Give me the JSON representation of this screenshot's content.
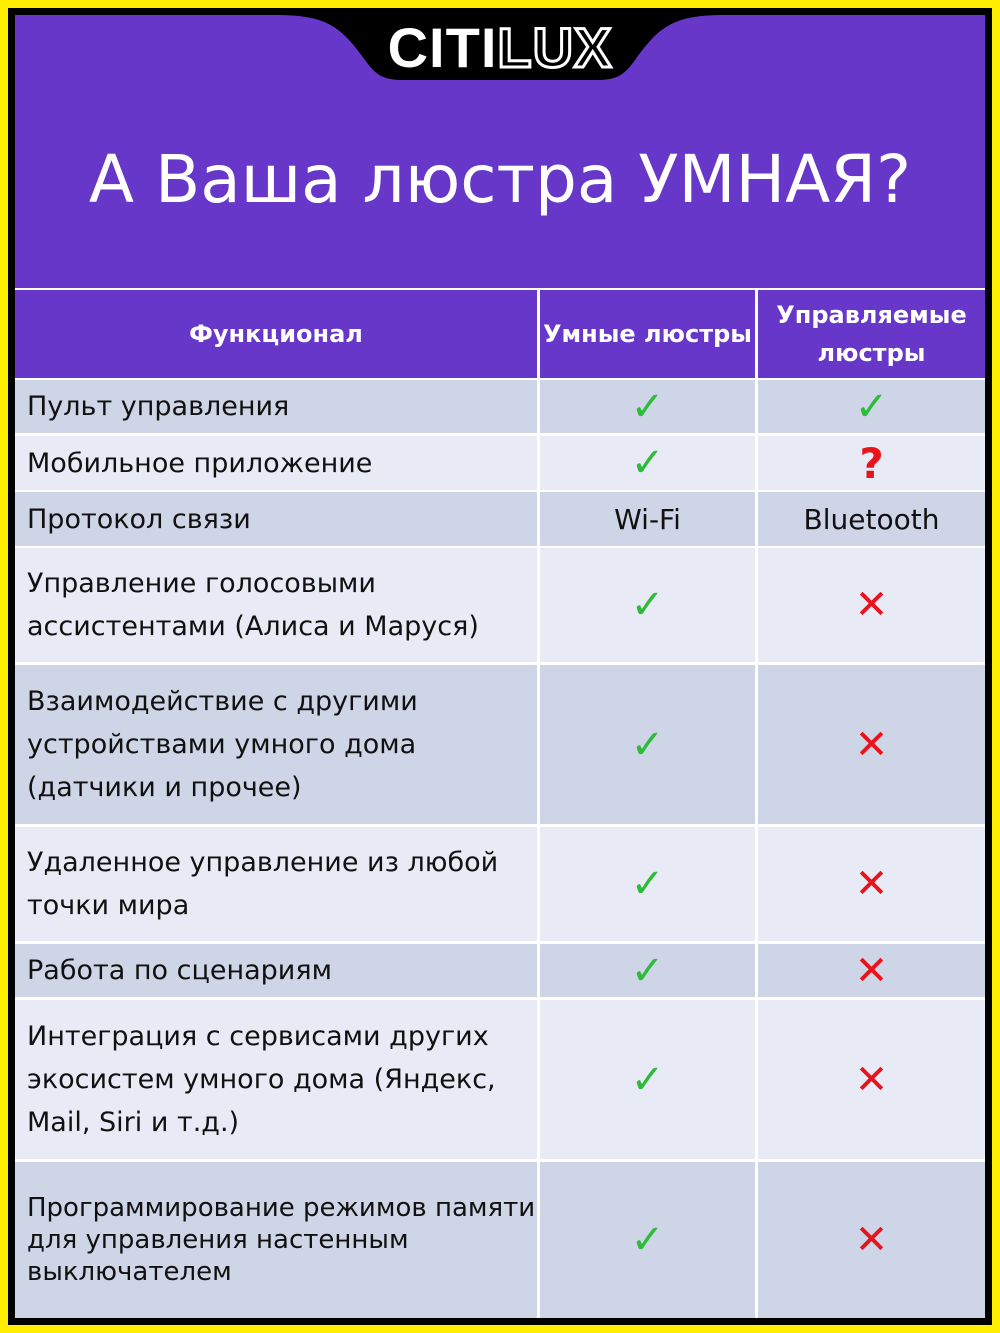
{
  "brand": {
    "logo_part1": "CITI",
    "logo_part2": "LUX"
  },
  "title": "А Ваша люстра УМНАЯ?",
  "colors": {
    "purple": "#6637c9",
    "border": "#ffee00",
    "check": "#2dbb3a",
    "cross": "#e8141c"
  },
  "table": {
    "headers": [
      "Функционал",
      "Умные люстры",
      "Управляемые люстры"
    ],
    "rows": [
      {
        "feature": "Пульт управления",
        "smart": "✓",
        "controlled": "✓"
      },
      {
        "feature": "Мобильное приложение",
        "smart": "✓",
        "controlled": "?"
      },
      {
        "feature": "Протокол связи",
        "smart": "Wi-Fi",
        "controlled": "Bluetooth"
      },
      {
        "feature": "Управление голосовыми ассистентами (Алиса и Маруся)",
        "smart": "✓",
        "controlled": "✕"
      },
      {
        "feature": "Взаимодействие с другими устройствами умного дома (датчики и прочее)",
        "smart": "✓",
        "controlled": "✕"
      },
      {
        "feature": "Удаленное управление из любой точки мира",
        "smart": "✓",
        "controlled": "✕"
      },
      {
        "feature": "Работа по сценариям",
        "smart": "✓",
        "controlled": "✕"
      },
      {
        "feature": "Интеграция с сервисами других экосистем умного дома (Яндекс, Mail, Siri и т.д.)",
        "smart": "✓",
        "controlled": "✕"
      },
      {
        "feature": "Программирование режимов памяти для управления настенным выключателем",
        "smart": "✓",
        "controlled": "✕"
      }
    ]
  }
}
